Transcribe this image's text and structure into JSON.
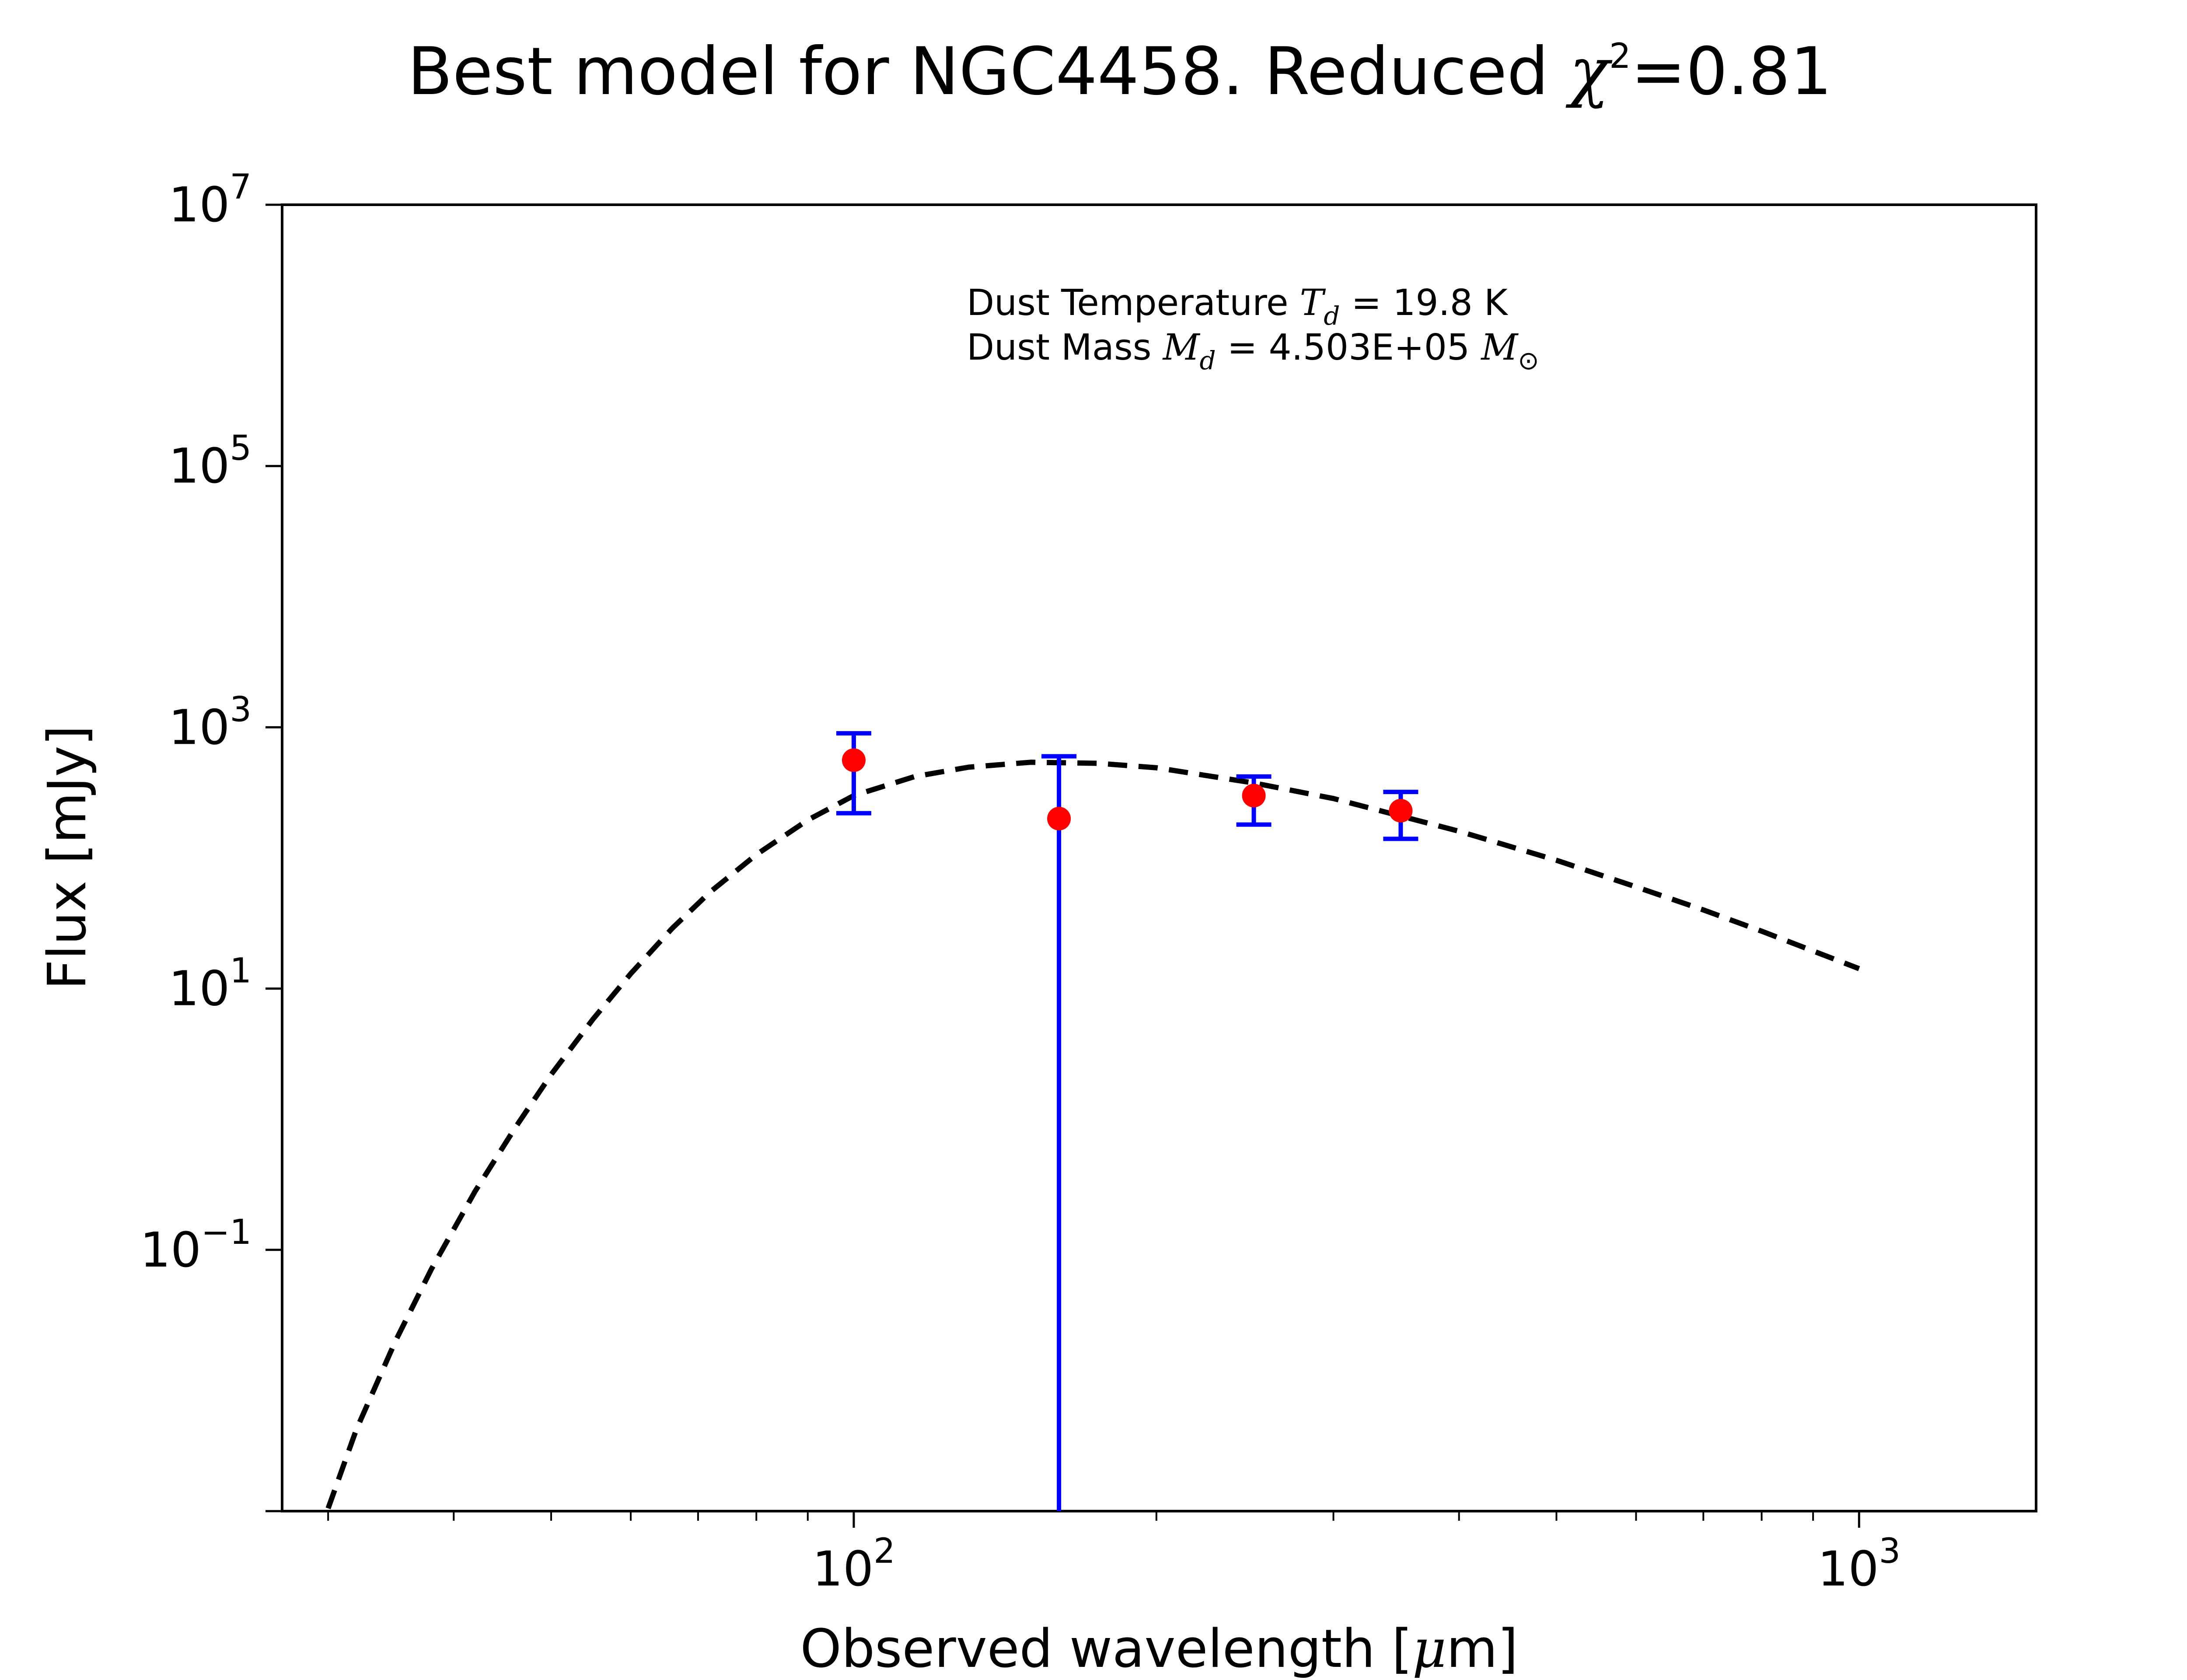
{
  "chart_data": {
    "type": "scatter",
    "title": {
      "prefix": "Best model for NGC4458. Reduced ",
      "chi": "χ",
      "sup": "2",
      "suffix": "=0.81"
    },
    "xlabel": {
      "text": "Observed wavelength [",
      "mu": "μ",
      "unit": "m]"
    },
    "ylabel": "Flux [mJy]",
    "xscale": "log",
    "yscale": "log",
    "xlim": [
      27,
      1500
    ],
    "ylim": [
      0.001,
      10000000
    ],
    "grid": false,
    "x_ticks": [
      {
        "base": "10",
        "exp": "2",
        "value": 100
      },
      {
        "base": "10",
        "exp": "3",
        "value": 1000
      }
    ],
    "y_ticks": [
      {
        "base": "10",
        "exp": "7",
        "value": 10000000
      },
      {
        "base": "10",
        "exp": "5",
        "value": 100000
      },
      {
        "base": "10",
        "exp": "3",
        "value": 1000
      },
      {
        "base": "10",
        "exp": "1",
        "value": 10
      },
      {
        "base": "10",
        "exp": "−1",
        "value": 0.1
      }
    ],
    "annotations": {
      "line1": {
        "prefix": "Dust Temperature ",
        "sym": "T",
        "sub": "d",
        "suffix": " = 19.8 K"
      },
      "line2": {
        "prefix": "Dust Mass ",
        "sym": "M",
        "sub": "d",
        "mid": " = 4.503E+05 ",
        "sym2": "M",
        "sub2": "⊙"
      }
    },
    "series": [
      {
        "kind": "observed",
        "marker_color": "#ff0000",
        "errorbar_color": "#0000ff",
        "points": [
          {
            "x": 100,
            "y": 560,
            "ylow": 220,
            "yhigh": 900
          },
          {
            "x": 160,
            "y": 200,
            "ylow": 0.001,
            "yhigh": 600
          },
          {
            "x": 250,
            "y": 300,
            "ylow": 180,
            "yhigh": 420
          },
          {
            "x": 350,
            "y": 230,
            "ylow": 140,
            "yhigh": 320
          }
        ]
      },
      {
        "kind": "model",
        "line_style": "dashed",
        "line_color": "#000000",
        "x": [
          30,
          32,
          35,
          38,
          42,
          46,
          50,
          55,
          60,
          66,
          72,
          80,
          90,
          100,
          115,
          130,
          150,
          175,
          200,
          250,
          300,
          400,
          500,
          600,
          700,
          800,
          1000
        ],
        "y": [
          0.00105,
          0.0042,
          0.02,
          0.071,
          0.28,
          0.85,
          2.2,
          5.8,
          13,
          29,
          55,
          106,
          195,
          300,
          420,
          495,
          540,
          530,
          490,
          375,
          285,
          160,
          96,
          60,
          40,
          27.5,
          14.2
        ]
      }
    ]
  }
}
